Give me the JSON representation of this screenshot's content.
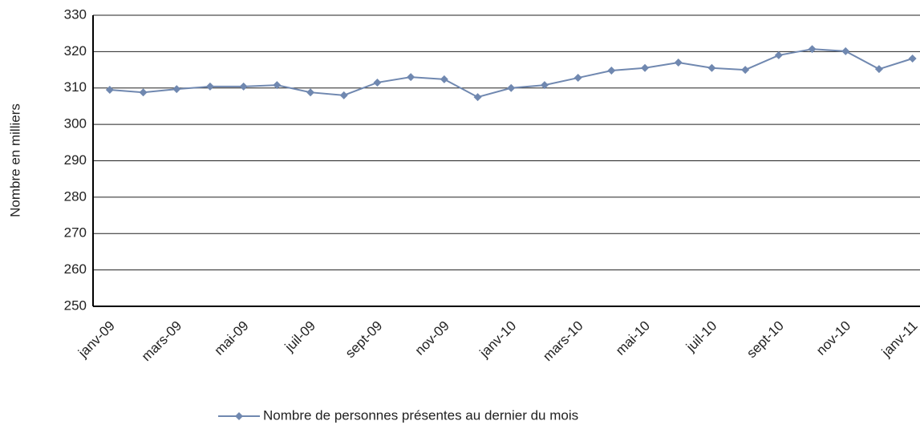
{
  "chart_data": {
    "type": "line",
    "y_label": "Nombre en milliers",
    "categories": [
      "janv-09",
      null,
      "mars-09",
      null,
      "mai-09",
      null,
      "juil-09",
      null,
      "sept-09",
      null,
      "nov-09",
      null,
      "janv-10",
      null,
      "mars-10",
      null,
      "mai-10",
      null,
      "juil-10",
      null,
      "sept-10",
      null,
      "nov-10",
      null,
      "janv-11"
    ],
    "series": [
      {
        "name": "Nombre de personnes présentes au dernier du mois",
        "color": "#7088b0",
        "values": [
          309.5,
          308.8,
          309.7,
          310.4,
          310.4,
          310.8,
          308.8,
          308.0,
          311.5,
          313.0,
          312.4,
          307.5,
          310.0,
          310.8,
          312.8,
          314.8,
          315.5,
          317.0,
          315.5,
          315.0,
          319.0,
          320.7,
          320.1,
          315.2,
          318.1
        ]
      }
    ],
    "ylim": [
      250,
      330
    ],
    "yticks": [
      250,
      260,
      270,
      280,
      290,
      300,
      310,
      320,
      330
    ],
    "grid": true,
    "legend": "bottom"
  }
}
